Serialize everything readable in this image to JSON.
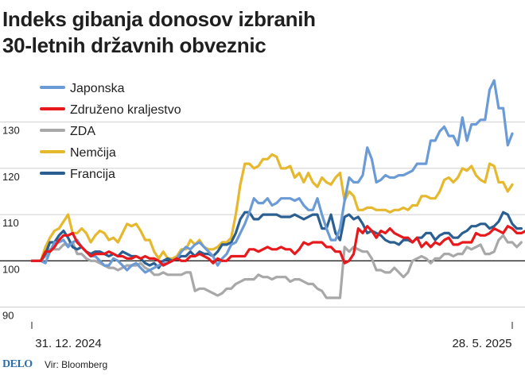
{
  "title_lines": [
    "Indeks gibanja donosov izbranih",
    "30-letnih državnih obveznic"
  ],
  "footer": {
    "logo": "DELO",
    "source": "Vir: Bloomberg"
  },
  "chart_data": {
    "type": "line",
    "title": "Indeks gibanja donosov izbranih 30-letnih državnih obveznic",
    "xlabel": "",
    "ylabel": "",
    "x_tick_labels": [
      "31. 12. 2024",
      "28. 5. 2025"
    ],
    "ylim": [
      87,
      143
    ],
    "yticks": [
      90,
      100,
      110,
      120,
      130
    ],
    "reference_line": 100,
    "legend_position": "top-left",
    "series": [
      {
        "name": "Japonska",
        "color": "#6b9bd6",
        "values": [
          100,
          100,
          100,
          99.5,
          102,
          104,
          104,
          104.5,
          103,
          104,
          104.5,
          103,
          102,
          101,
          101,
          100,
          99,
          99,
          100.5,
          100,
          99,
          98,
          99,
          99.5,
          98.5,
          97.5,
          98,
          98.5,
          99,
          99.5,
          99.5,
          100,
          100.5,
          102,
          103,
          102.5,
          103.5,
          104,
          103,
          102,
          101,
          99,
          100.5,
          101.5,
          103.5,
          104,
          106,
          108,
          110.5,
          113.5,
          112.5,
          112.5,
          113.5,
          112,
          112.5,
          113.5,
          113.5,
          113.5,
          113,
          113.5,
          112,
          111,
          111,
          113.5,
          110,
          107,
          104.5,
          104.5,
          107,
          113,
          118,
          117,
          117,
          118.5,
          124.5,
          122,
          117,
          117.5,
          118.5,
          118,
          118,
          118.5,
          118.5,
          119,
          119.5,
          121,
          121,
          121,
          126,
          126,
          128,
          129,
          127,
          127,
          125,
          131,
          126,
          129.5,
          129.5,
          130.5,
          130.5,
          137,
          139,
          133,
          133,
          125,
          127.5
        ]
      },
      {
        "name": "Nemčija",
        "color": "#e6b82e",
        "values": [
          100,
          100,
          100,
          103,
          105,
          106.5,
          107,
          108.5,
          110,
          106,
          106,
          107,
          106,
          104,
          105.5,
          106.5,
          106,
          104.5,
          105,
          104,
          106,
          108,
          107.5,
          108,
          106.5,
          104.5,
          104.5,
          102,
          100.5,
          102,
          100.5,
          100.5,
          101,
          102.5,
          102.5,
          104.5,
          103.5,
          104.5,
          103,
          102.5,
          102.5,
          103,
          104,
          104,
          105,
          110,
          116.5,
          121,
          121,
          120,
          120.5,
          122,
          122,
          123,
          122.5,
          120,
          120,
          120.5,
          118,
          119,
          117,
          119,
          117,
          116,
          118,
          117,
          116.5,
          118,
          119,
          113,
          115,
          114,
          111,
          111,
          111.5,
          111.5,
          111,
          111,
          111,
          110.5,
          111,
          111,
          111.5,
          111,
          112,
          112,
          114,
          114,
          113.5,
          113.5,
          115,
          117.5,
          118,
          117,
          118,
          120,
          119.5,
          120.5,
          118.5,
          117.5,
          117,
          121,
          120.5,
          117,
          117,
          115,
          116.5
        ]
      },
      {
        "name": "Francija",
        "color": "#2b5f91",
        "values": [
          100,
          100,
          100,
          101.5,
          104,
          104,
          105.5,
          106.5,
          105,
          103,
          102.5,
          103,
          102,
          101.5,
          102,
          102,
          101.5,
          101,
          101.5,
          101,
          102,
          101.5,
          101,
          101,
          100.5,
          99.5,
          99,
          99.5,
          98.5,
          100,
          100.5,
          100,
          100.5,
          101,
          101,
          102,
          101,
          102,
          101.5,
          101.5,
          101,
          102,
          103.5,
          103.5,
          104,
          106,
          109,
          110.5,
          110.5,
          109,
          109,
          110,
          110,
          110,
          110,
          109.5,
          109.5,
          109.5,
          110,
          109.5,
          109,
          109.5,
          110,
          110,
          107,
          107,
          110,
          106,
          104.5,
          109.5,
          110,
          109,
          109.5,
          108,
          106,
          106.5,
          106,
          105.5,
          104.5,
          104,
          104,
          103.5,
          104.5,
          104.5,
          104,
          105,
          105,
          106,
          106,
          104.5,
          105.5,
          106,
          106,
          105,
          105,
          106,
          106.5,
          107.5,
          107.5,
          108,
          108,
          107,
          107.5,
          108.5,
          110.5,
          110,
          108,
          107,
          107
        ]
      },
      {
        "name": "Združeno kraljestvo",
        "color": "#e8191c",
        "values": [
          100,
          100,
          100,
          102,
          102,
          103,
          104.5,
          105.5,
          105.5,
          106,
          104,
          103,
          102,
          101,
          101.5,
          101.5,
          101.5,
          102,
          101.5,
          101,
          101,
          100.5,
          100.5,
          101,
          100.5,
          101,
          100.5,
          100.5,
          100,
          99,
          99.5,
          100,
          100.5,
          100,
          100,
          101,
          101,
          101.5,
          101,
          100.5,
          99.5,
          100.5,
          100,
          100,
          101,
          101,
          101,
          101,
          102.5,
          102.5,
          102,
          102.5,
          103,
          102.5,
          102.5,
          103,
          102.5,
          102.5,
          101.5,
          102.5,
          104,
          103.5,
          104,
          104,
          104,
          103,
          103,
          102,
          102,
          99.5,
          100,
          101.5,
          107,
          106,
          107.5,
          106.5,
          105,
          106.5,
          106,
          107,
          106,
          105.5,
          105,
          105,
          104,
          105,
          103,
          104,
          103,
          104,
          103.5,
          104.5,
          105,
          103.5,
          103.5,
          104,
          104,
          104,
          106,
          105.5,
          105.5,
          106,
          107,
          106.5,
          106,
          107.5,
          107,
          106,
          106,
          106.5,
          106.5
        ]
      },
      {
        "name": "ZDA",
        "color": "#a8a8a8",
        "values": [
          100,
          100,
          100,
          101,
          102.5,
          102.5,
          102.5,
          103.5,
          103.5,
          104,
          101.5,
          101.5,
          100.5,
          100,
          100,
          99.5,
          99,
          98.5,
          98.5,
          98,
          98.5,
          99,
          99,
          99,
          99.5,
          98.5,
          98,
          97,
          97,
          97.5,
          97,
          97,
          97,
          97,
          97.5,
          97.5,
          93.5,
          94,
          94,
          93.5,
          93,
          92.5,
          93,
          94,
          94,
          95,
          95.5,
          96,
          96,
          96,
          97,
          96.5,
          96.5,
          96,
          96.5,
          96.5,
          96.5,
          95.5,
          96,
          96,
          95.5,
          95,
          95,
          94,
          93.5,
          92,
          92,
          92,
          92,
          103,
          102,
          103,
          102.5,
          102,
          102,
          100.5,
          98,
          98,
          97.5,
          97.5,
          98.5,
          97.5,
          96.5,
          97.5,
          100,
          100.5,
          101,
          100.5,
          99.5,
          100.5,
          100.5,
          101.5,
          101.5,
          101,
          101.5,
          101.5,
          103,
          102.5,
          103,
          103.5,
          101.5,
          101.5,
          102,
          104.5,
          105.5,
          104,
          104,
          103,
          104
        ]
      }
    ]
  }
}
